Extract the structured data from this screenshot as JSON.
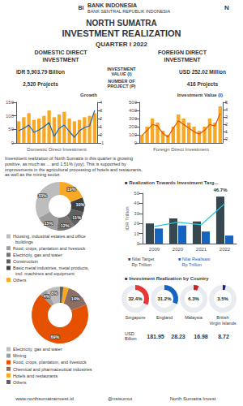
{
  "chart_data": [
    {
      "type": "bar",
      "title": "Growth",
      "xlabel": "Domestic Direct Investment",
      "categories": [
        null,
        null,
        null,
        null,
        null,
        null,
        null,
        null,
        null,
        null,
        null,
        null,
        null,
        null,
        null,
        null
      ],
      "series": [
        {
          "type": "bar",
          "color": "#f9a825",
          "values": [
            80,
            95,
            110,
            85,
            90,
            100,
            120,
            95,
            105,
            115,
            90,
            80,
            85,
            95,
            100,
            110
          ]
        },
        {
          "type": "line",
          "axis": "y2",
          "color": "#1565c0",
          "values": [
            0.5,
            0.8,
            1.2,
            0.3,
            0.6,
            1.0,
            1.5,
            -0.2,
            0.8,
            1.2,
            0.4,
            -0.3,
            0.5,
            0.9,
            1.1,
            3.0
          ]
        }
      ],
      "ylim": [
        0,
        150
      ],
      "yticks": [
        0,
        50,
        100,
        150
      ],
      "y2lim": [
        -1,
        4
      ],
      "y2ticks": [
        -1,
        0,
        1,
        2,
        3,
        4
      ],
      "grid": false,
      "annotations": [
        "BI",
        "BANK INDONESIA",
        "BANK SENTRAL REPUBLIK INDONESIA",
        "N",
        "NORTH SUMATRA",
        "INVESTMENT REALIZATION",
        "QUARTER I 2022",
        "DOMESTIC DIRECT\nINVESTMENT",
        "IDR 5,903.79 Billion",
        "2,520 Projects",
        "INVESTMENT\nVALUE (I)",
        "NUMBER OF\nPROJECT (P)",
        "Investment realization of North Sumatra in this quarter is growing\npositive, as much as ... and 1.51% (yoy). This is supported by\nimprovements in the agricultural processing of hotels and restaurants,\nas well as the mining sector.",
        "www.northsumatrainvest.id",
        "@nsisumut",
        "North Sumatra Invest"
      ]
    },
    {
      "type": "bar",
      "title": "Investment Value (I)",
      "xlabel": "Foreign Direct Investment",
      "categories": [
        null,
        null,
        null,
        null,
        null,
        null,
        null,
        null,
        null,
        null,
        null,
        null,
        null,
        null,
        null,
        null
      ],
      "series": [
        {
          "type": "bar",
          "color": "#f9a825",
          "values": [
            100,
            200,
            300,
            250,
            150,
            100,
            200,
            350,
            300,
            250,
            200,
            150,
            200,
            300,
            250,
            450
          ]
        },
        {
          "type": "line",
          "axis": "y2",
          "color": "#e65100",
          "values": [
            0.5,
            1.2,
            2.0,
            1.8,
            0.8,
            0.3,
            1.5,
            2.5,
            2.0,
            1.5,
            1.0,
            0.7,
            1.2,
            2.0,
            1.8,
            3.5
          ]
        }
      ],
      "ylim": [
        0,
        500
      ],
      "yticks": [
        0,
        100,
        200,
        300,
        400,
        500
      ],
      "y2lim": [
        -0.5,
        5
      ],
      "y2ticks": [
        0,
        1,
        2,
        3,
        4,
        5
      ],
      "grid": false,
      "annotations": [
        "FOREIGN DIRECT\nINVESTMENT",
        "USD 252.02 Million",
        "416 Projects"
      ]
    },
    {
      "type": "donut",
      "categories": [
        "Housing, industrial estates and office\n  buildings",
        "Food, crops, plantation and livestock",
        "Electricity, gas and water",
        "Construction",
        "Basic metal industries, metal products,\n  incl. machines and equipment",
        "Others"
      ],
      "values": [
        33,
        15,
        12,
        11,
        10,
        19
      ],
      "value_labels": [
        "33%",
        "15%",
        "12%",
        "11%",
        "10%",
        "19%"
      ],
      "colors": [
        "#bdbdbd",
        "#9e9e9e",
        "#757575",
        "#616161",
        "#424242",
        "#f9a825"
      ],
      "data_labels": true
    },
    {
      "type": "donut",
      "categories": [
        "Electricity, gas and water",
        "Mining",
        "Food, crops, plantation, and livestock",
        "Chemical and pharmaceutical industries",
        "Hotels and restaurants",
        "Others"
      ],
      "values": [
        8,
        4,
        69,
        14,
        3,
        2
      ],
      "value_labels": [
        "8%",
        "4%",
        "69%",
        "14%",
        null,
        null
      ],
      "colors": [
        "#bdbdbd",
        "#9e9e9e",
        "#e65100",
        "#8d6e63",
        "#f9a825",
        "#616161"
      ],
      "data_labels": true
    },
    {
      "type": "bar",
      "title": "■ Realization Towards Investment Targ...",
      "categories": [
        "2009",
        "2020",
        "2021",
        "2022"
      ],
      "series": [
        {
          "type": "bar",
          "name": "■ Nilai Target\n   Rp Trillion",
          "color": "#37474f",
          "values": [
            20,
            25,
            22,
            46.7
          ]
        },
        {
          "type": "bar",
          "name": "■ Nilai Realisasi\n   Rp Trillion",
          "color": "#1565c0",
          "values": [
            15,
            18,
            12,
            8
          ]
        },
        {
          "type": "line",
          "color": "#26c6da",
          "values": [
            17,
            21.25,
            18.7,
            39.695
          ]
        }
      ],
      "ylabel": "IDR Trillion",
      "ylim": [
        0,
        50
      ],
      "yticks": [
        0,
        10,
        20,
        30,
        40,
        50
      ],
      "grid": false,
      "legend": "bottom",
      "annotations": [
        "46.7%"
      ]
    },
    {
      "type": "gauge",
      "title": "■ Investment Realization by Country",
      "categories": [
        "Singapore",
        "England",
        "Malaysia",
        "British\nVirgin Islands"
      ],
      "values": [
        32.4,
        31.2,
        6.3,
        3.5
      ],
      "value_labels": [
        "32.4%",
        "31.2%",
        "6.3%",
        "3.5%"
      ],
      "colors": [
        "#e53935",
        "#1565c0",
        "#c62828",
        "#1a237e"
      ],
      "ylim": [
        0,
        100
      ],
      "totals": {
        "label": "USD\nBillion",
        "values": [
          181.95,
          28.23,
          16.98,
          8.72
        ]
      }
    }
  ]
}
